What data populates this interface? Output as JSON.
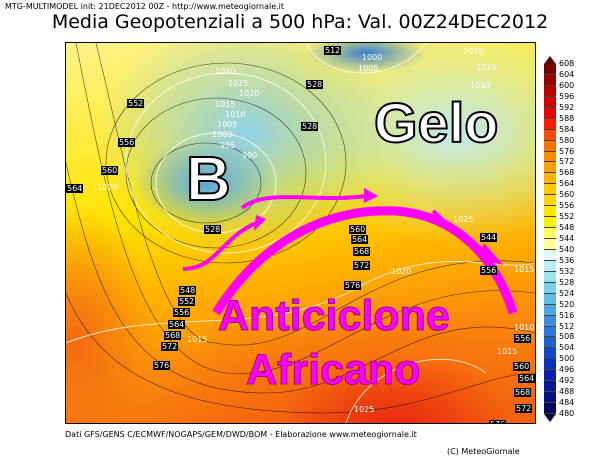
{
  "header": {
    "model_info": "MTG-MULTIMODEL init: 21DEC2012 00Z - http://www.meteogiornale.it",
    "title": "Media Geopotenziali a 500 hPa: Val. 00Z24DEC2012"
  },
  "map": {
    "annotations": {
      "low": "B",
      "cold": "Gelo",
      "high_line1": "Anticiclone",
      "high_line2": "Africano"
    },
    "annotation_colors": {
      "high": "#ff00ff",
      "arrows": "#ff00ff",
      "low": "#ffffff",
      "cold": "#ffffff"
    },
    "geopotential_labels": [
      "552",
      "556",
      "560",
      "564",
      "528",
      "528",
      "528",
      "560",
      "564",
      "568",
      "572",
      "576",
      "548",
      "552",
      "556",
      "564",
      "568",
      "572",
      "576",
      "556",
      "556",
      "560",
      "564",
      "568",
      "572",
      "576",
      "544",
      "512"
    ],
    "pressure_labels": [
      "1030",
      "1025",
      "1020",
      "1015",
      "1010",
      "1005",
      "1000",
      "995",
      "990",
      "1020",
      "1000",
      "1005",
      "1020",
      "1025",
      "1030",
      "1025",
      "1020",
      "1015",
      "1010",
      "1015",
      "1015",
      "1025"
    ]
  },
  "colorbar": {
    "ticks": [
      "608",
      "604",
      "600",
      "596",
      "592",
      "588",
      "584",
      "580",
      "576",
      "572",
      "568",
      "564",
      "560",
      "556",
      "552",
      "548",
      "544",
      "540",
      "536",
      "532",
      "528",
      "524",
      "520",
      "516",
      "512",
      "508",
      "504",
      "500",
      "496",
      "492",
      "488",
      "484",
      "480"
    ],
    "colors": [
      "#7a0000",
      "#9a0000",
      "#b80000",
      "#d40000",
      "#ea0000",
      "#ff1a00",
      "#ff4a00",
      "#ff7000",
      "#ff8c00",
      "#ffa000",
      "#ffb400",
      "#ffc800",
      "#ffd800",
      "#ffe600",
      "#fff200",
      "#ffff60",
      "#ffff9a",
      "#e0fafa",
      "#b8eef0",
      "#98e2ec",
      "#78d2ea",
      "#60bce6",
      "#4ea6e0",
      "#3e8ede",
      "#2e76d8",
      "#1e5ed0",
      "#1046c8",
      "#0a30bc",
      "#0a20a8",
      "#081896",
      "#061080",
      "#040a60"
    ]
  },
  "footer": {
    "source": "Dati GFS/GENS C/ECMWF/NOGAPS/GEM/DWD/BOM - Elaborazione www.meteogiornale.it",
    "copyright": "(C) MeteoGiornale"
  }
}
